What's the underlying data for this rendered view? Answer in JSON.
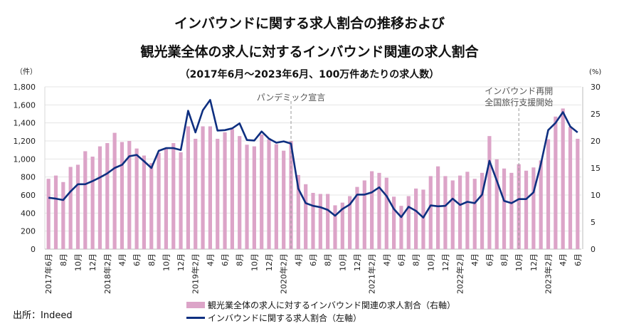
{
  "title_line1": "インバウンドに関する求人割合の推移および",
  "title_line2": "観光業全体の求人に対するインバウンド関連の求人割合",
  "subtitle": "（2017年6月～2023年6月、100万件あたりの求人数）",
  "source": "出所：Indeed",
  "chart_data": {
    "type": "bar+line",
    "left_axis_unit": "（件）",
    "right_axis_unit": "(%)",
    "left_ylim": [
      0,
      1800
    ],
    "left_ticks": [
      "0",
      "200",
      "400",
      "600",
      "800",
      "1,000",
      "1,200",
      "1,400",
      "1,600",
      "1,800"
    ],
    "right_ylim": [
      0,
      30
    ],
    "right_ticks": [
      "0",
      "5",
      "10",
      "15",
      "20",
      "25",
      "30"
    ],
    "grid": true,
    "legend_position": "bottom",
    "x_tick_labels": [
      "2017年6月",
      "8月",
      "10月",
      "12月",
      "2018年2月",
      "4月",
      "6月",
      "8月",
      "10月",
      "12月",
      "2019年2月",
      "4月",
      "6月",
      "8月",
      "10月",
      "12月",
      "2020年2月",
      "4月",
      "6月",
      "8月",
      "10月",
      "12月",
      "2021年2月",
      "4月",
      "6月",
      "8月",
      "10月",
      "12月",
      "2022年2月",
      "4月",
      "6月",
      "8月",
      "10月",
      "12月",
      "2023年2月",
      "4月",
      "6月"
    ],
    "months": [
      "2017-06",
      "2017-07",
      "2017-08",
      "2017-09",
      "2017-10",
      "2017-11",
      "2017-12",
      "2018-01",
      "2018-02",
      "2018-03",
      "2018-04",
      "2018-05",
      "2018-06",
      "2018-07",
      "2018-08",
      "2018-09",
      "2018-10",
      "2018-11",
      "2018-12",
      "2019-01",
      "2019-02",
      "2019-03",
      "2019-04",
      "2019-05",
      "2019-06",
      "2019-07",
      "2019-08",
      "2019-09",
      "2019-10",
      "2019-11",
      "2019-12",
      "2020-01",
      "2020-02",
      "2020-03",
      "2020-04",
      "2020-05",
      "2020-06",
      "2020-07",
      "2020-08",
      "2020-09",
      "2020-10",
      "2020-11",
      "2020-12",
      "2021-01",
      "2021-02",
      "2021-03",
      "2021-04",
      "2021-05",
      "2021-06",
      "2021-07",
      "2021-08",
      "2021-09",
      "2021-10",
      "2021-11",
      "2021-12",
      "2022-01",
      "2022-02",
      "2022-03",
      "2022-04",
      "2022-05",
      "2022-06",
      "2022-07",
      "2022-08",
      "2022-09",
      "2022-10",
      "2022-11",
      "2022-12",
      "2023-01",
      "2023-02",
      "2023-03",
      "2023-04",
      "2023-05",
      "2023-06"
    ],
    "series": [
      {
        "name": "観光業全体の求人に対するインバウンド関連の求人割合（右軸）",
        "type": "bar",
        "axis": "right",
        "color": "#dca4c8",
        "values": [
          13.0,
          13.6,
          12.4,
          15.2,
          15.6,
          18.1,
          17.1,
          19.0,
          19.6,
          21.5,
          19.8,
          20.0,
          18.6,
          17.3,
          15.9,
          17.8,
          18.5,
          19.6,
          17.9,
          22.7,
          20.4,
          22.7,
          22.7,
          20.4,
          21.6,
          22.2,
          20.9,
          19.3,
          19.0,
          21.2,
          20.3,
          19.4,
          18.2,
          20.0,
          13.7,
          12.0,
          10.4,
          10.2,
          10.2,
          8.1,
          8.6,
          9.8,
          11.5,
          12.7,
          14.4,
          14.1,
          13.2,
          9.7,
          8.0,
          9.8,
          11.2,
          11.0,
          13.5,
          15.3,
          13.5,
          12.7,
          13.6,
          14.3,
          13.0,
          14.1,
          20.9,
          16.6,
          14.9,
          14.1,
          15.7,
          14.5,
          15.1,
          16.4,
          20.3,
          24.5,
          26.0,
          22.6,
          20.4
        ]
      },
      {
        "name": "インバウンドに関する求人割合（左軸）",
        "type": "line",
        "axis": "left",
        "color": "#0e2f80",
        "values": [
          570,
          560,
          545,
          640,
          720,
          720,
          755,
          795,
          840,
          900,
          935,
          1030,
          1045,
          975,
          900,
          1090,
          1120,
          1120,
          1100,
          1535,
          1295,
          1540,
          1655,
          1315,
          1320,
          1340,
          1395,
          1210,
          1205,
          1305,
          1225,
          1180,
          1195,
          1170,
          670,
          510,
          480,
          465,
          435,
          370,
          445,
          495,
          605,
          605,
          630,
          685,
          590,
          445,
          355,
          470,
          425,
          350,
          485,
          475,
          480,
          560,
          490,
          525,
          510,
          605,
          980,
          760,
          535,
          510,
          555,
          555,
          630,
          945,
          1320,
          1400,
          1520,
          1360,
          1295
        ]
      }
    ],
    "annotations": [
      {
        "month": "2020-03",
        "lines": [
          "パンデミック宣言"
        ]
      },
      {
        "month": "2022-10",
        "lines": [
          "インバウンド再開",
          "全国旅行支援開始"
        ]
      }
    ]
  }
}
